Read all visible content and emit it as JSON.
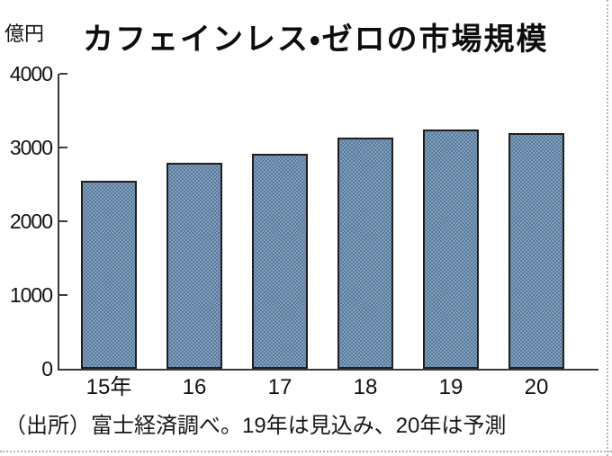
{
  "page": {
    "unit_label": "億円",
    "title": "カフェインレス・ゼロの市場規模",
    "source_note": "（出所）富士経済調べ。19年は見込み、20年は予測"
  },
  "chart_data": {
    "type": "bar",
    "title": "カフェインレス・ゼロの市場規模",
    "ylabel": "億円",
    "categories": [
      "15年",
      "16",
      "17",
      "18",
      "19",
      "20"
    ],
    "values": [
      2550,
      2790,
      2910,
      3140,
      3240,
      3200
    ],
    "ylim": [
      0,
      4000
    ],
    "yticks": [
      0,
      1000,
      2000,
      3000,
      4000
    ],
    "grid": "off",
    "legend": "none",
    "bar_fill_color": "#6a88a4",
    "bar_border_color": "#1f1f1f",
    "axis_color": "#3a3a3a",
    "annotation": "19年は見込み、20年は予測"
  }
}
